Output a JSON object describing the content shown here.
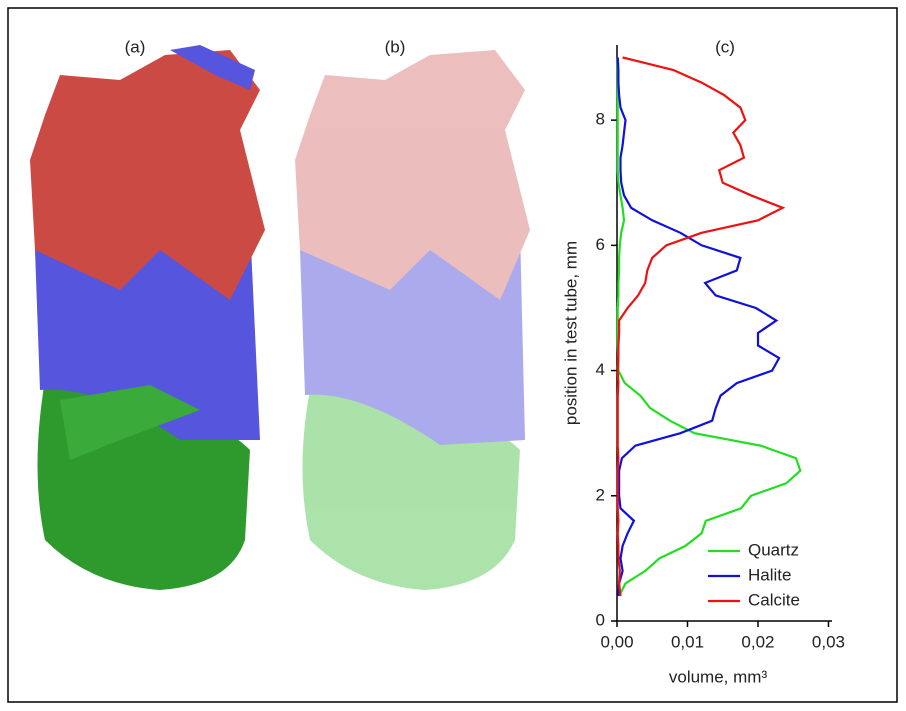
{
  "panels": {
    "a": "(a)",
    "b": "(b)"
  },
  "chart_data": {
    "type": "line",
    "title": "(c)",
    "x_label": "volume, mm³",
    "y_label": "position in test tube, mm",
    "y": [
      0.4,
      0.6,
      0.8,
      1.0,
      1.2,
      1.4,
      1.6,
      1.8,
      2.0,
      2.2,
      2.4,
      2.6,
      2.8,
      3.0,
      3.2,
      3.4,
      3.6,
      3.8,
      4.0,
      4.2,
      4.4,
      4.6,
      4.8,
      5.0,
      5.2,
      5.4,
      5.6,
      5.8,
      6.0,
      6.2,
      6.4,
      6.6,
      6.8,
      7.0,
      7.2,
      7.4,
      7.6,
      7.8,
      8.0,
      8.2,
      8.4,
      8.6,
      8.8,
      9.0
    ],
    "series": [
      {
        "name": "Quartz",
        "color": "#22dd22",
        "values": [
          0.0003,
          0.0012,
          0.004,
          0.006,
          0.0097,
          0.012,
          0.0126,
          0.0176,
          0.019,
          0.024,
          0.026,
          0.0254,
          0.0204,
          0.011,
          0.0075,
          0.0047,
          0.0033,
          0.0011,
          0.0002,
          0.0002,
          0.0001,
          0.0001,
          0.0001,
          0.0001,
          0.0002,
          0.0002,
          0.0003,
          0.0003,
          0.0004,
          0.0006,
          0.001,
          0.0008,
          0.0005,
          0.0002,
          0.0001,
          0.0001,
          0.0001,
          0.0001,
          0.0001,
          0.0001,
          0.0001,
          0.0001,
          0.0001,
          0.0001
        ]
      },
      {
        "name": "Halite",
        "color": "#1010dd",
        "values": [
          0.0002,
          0.0003,
          0.0008,
          0.0005,
          0.0008,
          0.0015,
          0.0024,
          0.0005,
          0.0003,
          0.0003,
          0.0003,
          0.0007,
          0.0026,
          0.009,
          0.0135,
          0.014,
          0.0147,
          0.017,
          0.022,
          0.023,
          0.02,
          0.02,
          0.0226,
          0.0197,
          0.014,
          0.0125,
          0.017,
          0.0175,
          0.012,
          0.009,
          0.005,
          0.002,
          0.001,
          0.0006,
          0.0005,
          0.0005,
          0.0008,
          0.001,
          0.0012,
          0.0005,
          0.0003,
          0.0002,
          0.0002,
          0.0001
        ]
      },
      {
        "name": "Calcite",
        "color": "#ee1111",
        "values": [
          0.0005,
          0.0003,
          0.0004,
          0.0002,
          0.0002,
          0.0001,
          0.0002,
          0.0001,
          0.0001,
          0.0001,
          0.0001,
          0.0002,
          0.0001,
          0.0001,
          0.0001,
          0.0001,
          0.0001,
          0.0002,
          0.0001,
          0.0002,
          0.0002,
          0.0003,
          0.0003,
          0.0015,
          0.003,
          0.004,
          0.0043,
          0.005,
          0.007,
          0.012,
          0.02,
          0.0235,
          0.019,
          0.015,
          0.0145,
          0.018,
          0.0175,
          0.0165,
          0.0182,
          0.0175,
          0.0152,
          0.012,
          0.008,
          0.0008
        ]
      }
    ],
    "xlim": [
      0,
      0.0305
    ],
    "ylim": [
      0,
      9.2
    ],
    "xticks": [
      {
        "value": 0,
        "label": "0,00"
      },
      {
        "value": 0.01,
        "label": "0,01"
      },
      {
        "value": 0.02,
        "label": "0,02"
      },
      {
        "value": 0.03,
        "label": "0,03"
      }
    ],
    "yticks": [
      0,
      2,
      4,
      6,
      8
    ],
    "legend": "lower right"
  }
}
